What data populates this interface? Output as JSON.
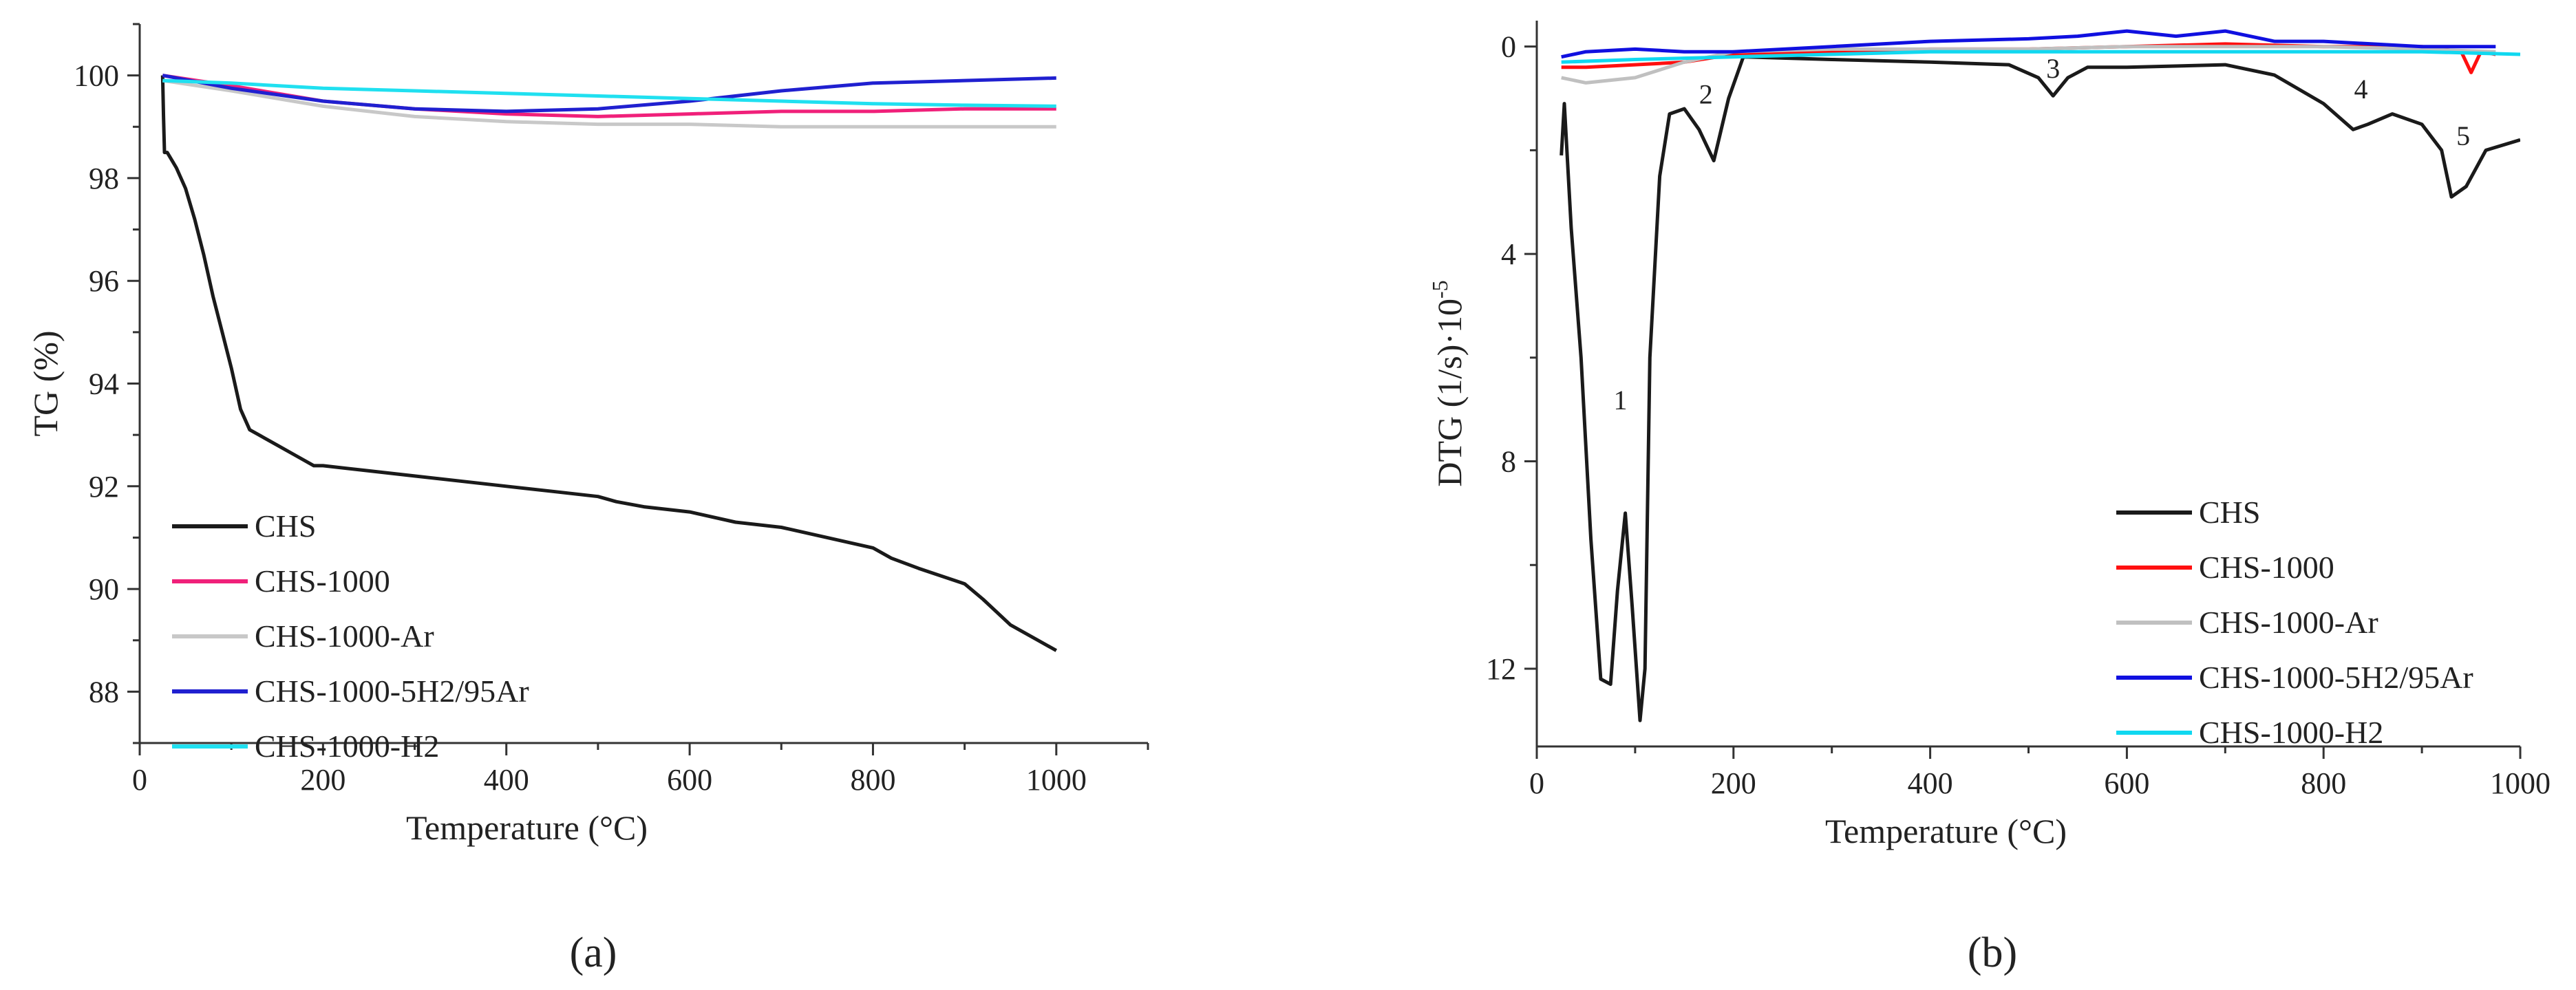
{
  "figure": {
    "panel_labels": [
      "(a)",
      "(b)"
    ]
  },
  "chart_data": [
    {
      "type": "line",
      "panel": "(a)",
      "title": "",
      "xlabel": "Temperature (°C)",
      "ylabel": "TG (%)",
      "xlim": [
        0,
        1100
      ],
      "ylim": [
        87,
        101
      ],
      "xticks": [
        0,
        200,
        400,
        600,
        800,
        1000
      ],
      "yticks": [
        88,
        90,
        92,
        94,
        96,
        98,
        100
      ],
      "grid": false,
      "legend_position": "bottom-left",
      "series": [
        {
          "name": "CHS",
          "color": "#1a1a1a",
          "x": [
            25,
            26,
            27,
            30,
            40,
            50,
            60,
            70,
            80,
            90,
            100,
            110,
            120,
            130,
            150,
            170,
            190,
            200,
            250,
            300,
            350,
            400,
            450,
            500,
            520,
            550,
            600,
            650,
            700,
            750,
            800,
            820,
            850,
            900,
            920,
            950,
            980,
            1000
          ],
          "y": [
            100,
            99.2,
            98.5,
            98.5,
            98.2,
            97.8,
            97.2,
            96.5,
            95.7,
            95.0,
            94.3,
            93.5,
            93.1,
            93.0,
            92.8,
            92.6,
            92.4,
            92.4,
            92.3,
            92.2,
            92.1,
            92.0,
            91.9,
            91.8,
            91.7,
            91.6,
            91.5,
            91.3,
            91.2,
            91.0,
            90.8,
            90.6,
            90.4,
            90.1,
            89.8,
            89.3,
            89.0,
            88.8
          ]
        },
        {
          "name": "CHS-1000",
          "color": "#f0207a",
          "x": [
            25,
            100,
            200,
            300,
            400,
            500,
            600,
            700,
            800,
            900,
            1000
          ],
          "y": [
            100,
            99.8,
            99.5,
            99.35,
            99.25,
            99.2,
            99.25,
            99.3,
            99.3,
            99.35,
            99.35
          ]
        },
        {
          "name": "CHS-1000-Ar",
          "color": "#c8c8c8",
          "x": [
            25,
            100,
            200,
            300,
            400,
            500,
            600,
            700,
            800,
            900,
            1000
          ],
          "y": [
            99.9,
            99.7,
            99.4,
            99.2,
            99.1,
            99.05,
            99.05,
            99.0,
            99.0,
            99.0,
            99.0
          ]
        },
        {
          "name": "CHS-1000-5H2/95Ar",
          "color": "#2020d0",
          "x": [
            25,
            100,
            200,
            300,
            400,
            500,
            600,
            700,
            800,
            900,
            1000
          ],
          "y": [
            100,
            99.75,
            99.5,
            99.35,
            99.3,
            99.35,
            99.5,
            99.7,
            99.85,
            99.9,
            99.95
          ]
        },
        {
          "name": "CHS-1000-H2",
          "color": "#20e0f0",
          "x": [
            25,
            100,
            200,
            300,
            400,
            500,
            600,
            700,
            800,
            900,
            1000
          ],
          "y": [
            99.9,
            99.85,
            99.75,
            99.7,
            99.65,
            99.6,
            99.55,
            99.5,
            99.45,
            99.42,
            99.4
          ]
        }
      ]
    },
    {
      "type": "line",
      "panel": "(b)",
      "title": "",
      "xlabel": "Temperature (°C)",
      "ylabel": "DTG (1/s)·10",
      "ylabel_superscript": "-5",
      "xlim": [
        0,
        1000
      ],
      "ylim": [
        13.5,
        -0.5
      ],
      "y_axis_inverted": true,
      "xticks": [
        0,
        200,
        400,
        600,
        800,
        1000
      ],
      "yticks": [
        0,
        4,
        8,
        12
      ],
      "grid": false,
      "legend_position": "bottom-right",
      "peak_labels": [
        {
          "text": "1",
          "x": 85,
          "y": 7.0
        },
        {
          "text": "2",
          "x": 172,
          "y": 1.1
        },
        {
          "text": "3",
          "x": 525,
          "y": 0.6
        },
        {
          "text": "4",
          "x": 838,
          "y": 1.0
        },
        {
          "text": "5",
          "x": 942,
          "y": 1.9
        }
      ],
      "series": [
        {
          "name": "CHS",
          "color": "#1a1a1a",
          "x": [
            25,
            28,
            35,
            45,
            55,
            65,
            75,
            82,
            90,
            97,
            105,
            110,
            115,
            125,
            135,
            150,
            165,
            180,
            195,
            210,
            300,
            400,
            480,
            510,
            525,
            540,
            560,
            600,
            700,
            750,
            800,
            830,
            845,
            870,
            900,
            920,
            930,
            945,
            965,
            1000
          ],
          "y": [
            2.1,
            1.1,
            3.5,
            6.0,
            9.5,
            12.2,
            12.3,
            10.5,
            9.0,
            10.8,
            13.0,
            12.0,
            6.0,
            2.5,
            1.3,
            1.2,
            1.6,
            2.2,
            1.0,
            0.2,
            0.25,
            0.3,
            0.35,
            0.6,
            0.95,
            0.6,
            0.4,
            0.4,
            0.35,
            0.55,
            1.1,
            1.6,
            1.5,
            1.3,
            1.5,
            2.0,
            2.9,
            2.7,
            2.0,
            1.8
          ]
        },
        {
          "name": "CHS-1000",
          "color": "#ff1010",
          "x": [
            25,
            50,
            100,
            150,
            200,
            300,
            400,
            500,
            600,
            700,
            800,
            900,
            940,
            950,
            960,
            975
          ],
          "y": [
            0.4,
            0.4,
            0.35,
            0.3,
            0.15,
            0.1,
            0.05,
            0.05,
            0.0,
            -0.05,
            0.0,
            0.0,
            0.1,
            0.5,
            0.1,
            0.15
          ]
        },
        {
          "name": "CHS-1000-Ar",
          "color": "#c0c0c0",
          "x": [
            25,
            50,
            100,
            150,
            200,
            300,
            400,
            500,
            600,
            700,
            800,
            900,
            975
          ],
          "y": [
            0.6,
            0.7,
            0.6,
            0.3,
            0.1,
            0.05,
            0.05,
            0.05,
            0.0,
            0.0,
            0.0,
            0.05,
            0.1
          ]
        },
        {
          "name": "CHS-1000-5H2/95Ar",
          "color": "#1010e0",
          "x": [
            25,
            50,
            100,
            150,
            200,
            300,
            400,
            500,
            550,
            600,
            650,
            700,
            750,
            800,
            900,
            975
          ],
          "y": [
            0.2,
            0.1,
            0.05,
            0.1,
            0.1,
            0.0,
            -0.1,
            -0.15,
            -0.2,
            -0.3,
            -0.2,
            -0.3,
            -0.1,
            -0.1,
            0.0,
            0.0
          ]
        },
        {
          "name": "CHS-1000-H2",
          "color": "#10d8f0",
          "x": [
            25,
            100,
            200,
            300,
            400,
            500,
            600,
            700,
            800,
            900,
            1000
          ],
          "y": [
            0.3,
            0.25,
            0.2,
            0.15,
            0.1,
            0.1,
            0.1,
            0.1,
            0.1,
            0.1,
            0.15
          ]
        }
      ]
    }
  ]
}
